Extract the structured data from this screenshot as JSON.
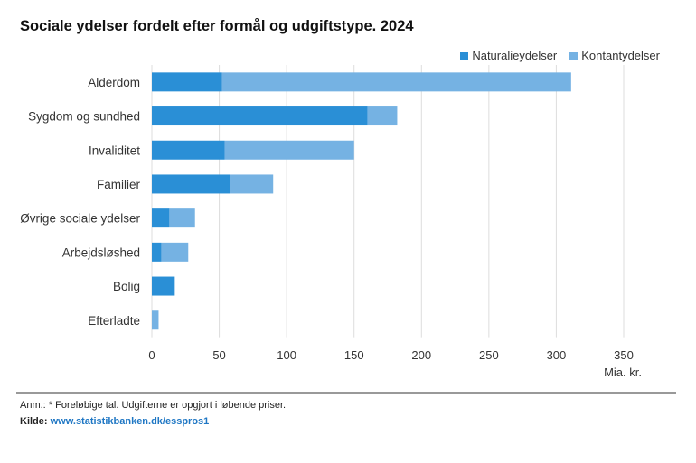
{
  "chart_data": {
    "type": "bar",
    "orientation": "horizontal",
    "stacked": true,
    "title": "Sociale ydelser fordelt efter formål og udgiftstype. 2024",
    "xlabel": "Mia. kr.",
    "xlim": [
      0,
      350
    ],
    "xticks": [
      0,
      50,
      100,
      150,
      200,
      250,
      300,
      350
    ],
    "categories": [
      "Alderdom",
      "Sygdom og sundhed",
      "Invaliditet",
      "Familier",
      "Øvrige sociale ydelser",
      "Arbejdsløshed",
      "Bolig",
      "Efterladte"
    ],
    "series": [
      {
        "name": "Naturalieydelser",
        "color": "#2a8fd6",
        "values": [
          52,
          160,
          54,
          58,
          13,
          7,
          17,
          0
        ]
      },
      {
        "name": "Kontantydelser",
        "color": "#75b2e3",
        "values": [
          259,
          22,
          96,
          32,
          19,
          20,
          0,
          5
        ]
      }
    ],
    "legend": "top-right",
    "grid": true
  },
  "footer": {
    "note": "Anm.: * Foreløbige tal. Udgifterne er opgjort i løbende priser.",
    "source_label": "Kilde:",
    "source_link": "www.statistikbanken.dk/esspros1"
  }
}
